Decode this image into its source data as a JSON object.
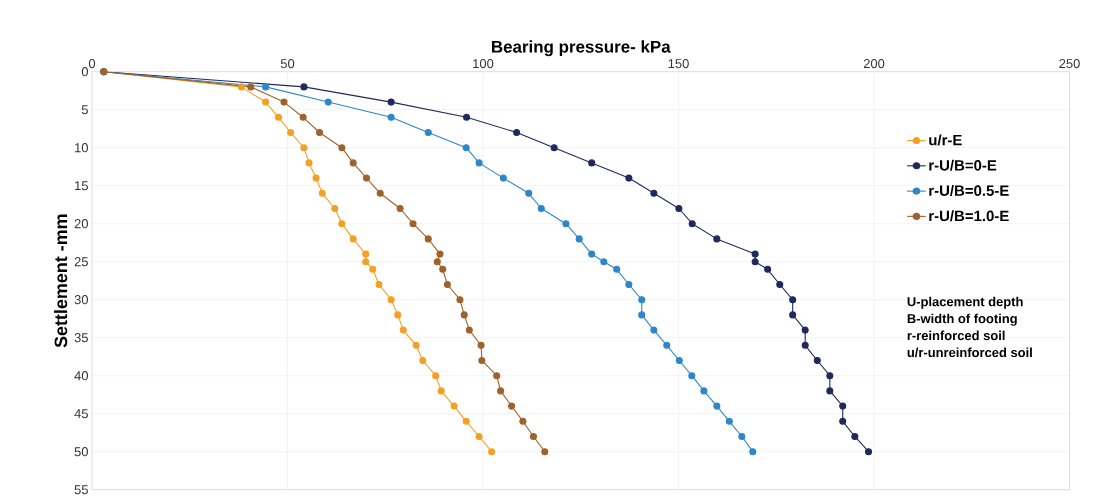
{
  "chart_data": {
    "type": "line",
    "xlabel": "Bearing pressure- kPa",
    "ylabel": "Settlement -mm",
    "xlim": [
      0,
      250
    ],
    "xticks": [
      0,
      50,
      100,
      150,
      200,
      250
    ],
    "ylim": [
      55,
      0
    ],
    "yticks": [
      0,
      5,
      10,
      15,
      20,
      25,
      30,
      35,
      40,
      45,
      50,
      55
    ],
    "grid": true,
    "legend": "right",
    "marker": "circle",
    "line_style": "solid",
    "annotations": [
      "U-placement depth",
      "B-width of footing",
      "r-reinforced soil",
      "u/r-unreinforced soil"
    ],
    "series": [
      {
        "name": "u/r-E",
        "color": "#f4a024",
        "x": [
          3,
          38.2,
          44.4,
          47.7,
          50.8,
          54.2,
          55.5,
          57.3,
          58.9,
          62.1,
          63.9,
          66.8,
          70.0,
          70.0,
          71.8,
          73.4,
          76.5,
          78.2,
          79.6,
          82.9,
          84.6,
          87.9,
          89.3,
          92.6,
          95.7,
          99.0,
          102.2
        ],
        "values": [
          0,
          2,
          4,
          6,
          8,
          10,
          12,
          14,
          16,
          18,
          20,
          22,
          24,
          25,
          26,
          28,
          30,
          32,
          34,
          36,
          38,
          40,
          42,
          44,
          46,
          48,
          50
        ]
      },
      {
        "name": "r-U/B=0-E",
        "color": "#1f2a5c",
        "x": [
          3,
          54.2,
          76.5,
          95.8,
          108.6,
          118.2,
          127.8,
          137.3,
          143.7,
          150.1,
          153.5,
          159.8,
          169.6,
          169.6,
          172.8,
          175.9,
          179.2,
          179.2,
          182.4,
          182.4,
          185.5,
          188.7,
          188.7,
          192.0,
          192.0,
          195.1,
          198.6
        ],
        "values": [
          0,
          2,
          4,
          6,
          8,
          10,
          12,
          14,
          16,
          18,
          20,
          22,
          24,
          25,
          26,
          28,
          30,
          32,
          34,
          36,
          38,
          40,
          42,
          44,
          46,
          48,
          50
        ]
      },
      {
        "name": "r-U/B=0.5-E",
        "color": "#2e86c8",
        "x": [
          3,
          44.4,
          60.4,
          76.5,
          86.0,
          95.7,
          99.0,
          105.2,
          111.7,
          114.9,
          121.2,
          124.6,
          127.8,
          130.9,
          134.2,
          137.3,
          140.6,
          140.6,
          143.7,
          147.0,
          150.2,
          153.4,
          156.5,
          159.8,
          163.0,
          166.2,
          169.0
        ],
        "values": [
          0,
          2,
          4,
          6,
          8,
          10,
          12,
          14,
          16,
          18,
          20,
          22,
          24,
          25,
          26,
          28,
          30,
          32,
          34,
          36,
          38,
          40,
          42,
          44,
          46,
          48,
          50
        ]
      },
      {
        "name": "r-U/B=1.0-E",
        "color": "#a0622a",
        "x": [
          3,
          40.6,
          49.1,
          54.0,
          58.2,
          63.9,
          66.8,
          70.2,
          73.7,
          78.8,
          82.1,
          86.0,
          89.0,
          88.3,
          89.7,
          90.9,
          94.1,
          95.2,
          96.5,
          99.5,
          99.7,
          103.5,
          104.5,
          107.3,
          110.2,
          112.9,
          115.8
        ],
        "values": [
          0,
          2,
          4,
          6,
          8,
          10,
          12,
          14,
          16,
          18,
          20,
          22,
          24,
          25,
          26,
          28,
          30,
          32,
          34,
          36,
          38,
          40,
          42,
          44,
          46,
          48,
          50
        ]
      }
    ]
  }
}
